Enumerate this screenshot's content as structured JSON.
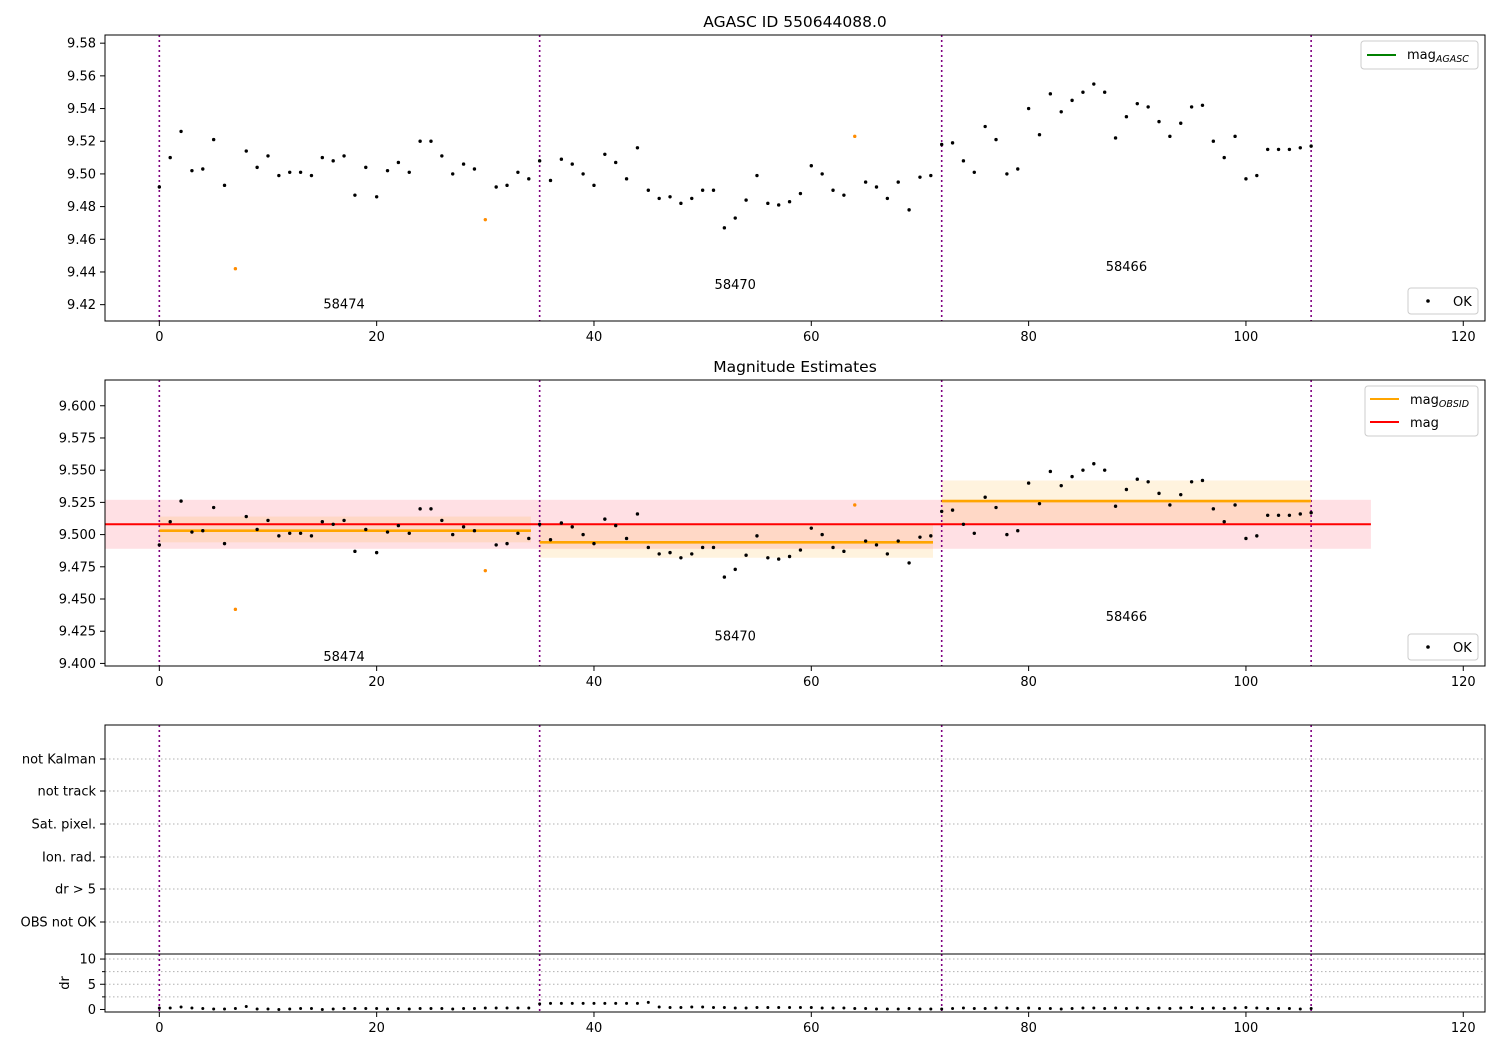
{
  "figure": {
    "top_title": "AGASC ID 550644088.0",
    "middle_title": "Magnitude Estimates"
  },
  "chart_data": [
    {
      "type": "scatter",
      "title": "AGASC ID 550644088.0",
      "xlim": [
        -5,
        122
      ],
      "ylim": [
        9.41,
        9.585
      ],
      "yticks": [
        9.42,
        9.44,
        9.46,
        9.48,
        9.5,
        9.52,
        9.54,
        9.56,
        9.58
      ],
      "xticks": [
        0,
        20,
        40,
        60,
        80,
        100,
        120
      ],
      "obsid_boundaries": [
        0,
        35,
        72,
        106
      ],
      "obsid_labels": [
        {
          "text": "58474",
          "x": 17,
          "y": 9.42
        },
        {
          "text": "58470",
          "x": 53,
          "y": 9.432
        },
        {
          "text": "58466",
          "x": 89,
          "y": 9.443
        }
      ],
      "legend": [
        {
          "name": "mag_AGASC",
          "label_main": "mag",
          "label_sub": "AGASC",
          "style": "line",
          "color": "#008000",
          "position": "top-right"
        },
        {
          "name": "OK",
          "label_main": "OK",
          "style": "point",
          "color": "#000000",
          "position": "bottom-right"
        }
      ],
      "ok_color": "#000000",
      "excluded_color": "#ff8c00",
      "series": [
        {
          "name": "OK",
          "points": [
            [
              0,
              9.492
            ],
            [
              1,
              9.51
            ],
            [
              2,
              9.526
            ],
            [
              3,
              9.502
            ],
            [
              4,
              9.503
            ],
            [
              5,
              9.521
            ],
            [
              6,
              9.493
            ],
            [
              8,
              9.514
            ],
            [
              9,
              9.504
            ],
            [
              10,
              9.511
            ],
            [
              11,
              9.499
            ],
            [
              12,
              9.501
            ],
            [
              13,
              9.501
            ],
            [
              14,
              9.499
            ],
            [
              15,
              9.51
            ],
            [
              16,
              9.508
            ],
            [
              17,
              9.511
            ],
            [
              18,
              9.487
            ],
            [
              19,
              9.504
            ],
            [
              20,
              9.486
            ],
            [
              21,
              9.502
            ],
            [
              22,
              9.507
            ],
            [
              23,
              9.501
            ],
            [
              24,
              9.52
            ],
            [
              25,
              9.52
            ],
            [
              26,
              9.511
            ],
            [
              27,
              9.5
            ],
            [
              28,
              9.506
            ],
            [
              29,
              9.503
            ],
            [
              31,
              9.492
            ],
            [
              32,
              9.493
            ],
            [
              33,
              9.501
            ],
            [
              34,
              9.497
            ],
            [
              35,
              9.508
            ],
            [
              36,
              9.496
            ],
            [
              37,
              9.509
            ],
            [
              38,
              9.506
            ],
            [
              39,
              9.5
            ],
            [
              40,
              9.493
            ],
            [
              41,
              9.512
            ],
            [
              42,
              9.507
            ],
            [
              43,
              9.497
            ],
            [
              44,
              9.516
            ],
            [
              45,
              9.49
            ],
            [
              46,
              9.485
            ],
            [
              47,
              9.486
            ],
            [
              48,
              9.482
            ],
            [
              49,
              9.485
            ],
            [
              50,
              9.49
            ],
            [
              51,
              9.49
            ],
            [
              52,
              9.467
            ],
            [
              53,
              9.473
            ],
            [
              54,
              9.484
            ],
            [
              55,
              9.499
            ],
            [
              56,
              9.482
            ],
            [
              57,
              9.481
            ],
            [
              58,
              9.483
            ],
            [
              59,
              9.488
            ],
            [
              60,
              9.505
            ],
            [
              61,
              9.5
            ],
            [
              62,
              9.49
            ],
            [
              63,
              9.487
            ],
            [
              65,
              9.495
            ],
            [
              66,
              9.492
            ],
            [
              67,
              9.485
            ],
            [
              68,
              9.495
            ],
            [
              69,
              9.478
            ],
            [
              70,
              9.498
            ],
            [
              71,
              9.499
            ],
            [
              72,
              9.518
            ],
            [
              73,
              9.519
            ],
            [
              74,
              9.508
            ],
            [
              75,
              9.501
            ],
            [
              76,
              9.529
            ],
            [
              77,
              9.521
            ],
            [
              78,
              9.5
            ],
            [
              79,
              9.503
            ],
            [
              80,
              9.54
            ],
            [
              81,
              9.524
            ],
            [
              82,
              9.549
            ],
            [
              83,
              9.538
            ],
            [
              84,
              9.545
            ],
            [
              85,
              9.55
            ],
            [
              86,
              9.555
            ],
            [
              87,
              9.55
            ],
            [
              88,
              9.522
            ],
            [
              89,
              9.535
            ],
            [
              90,
              9.543
            ],
            [
              91,
              9.541
            ],
            [
              92,
              9.532
            ],
            [
              93,
              9.523
            ],
            [
              94,
              9.531
            ],
            [
              95,
              9.541
            ],
            [
              96,
              9.542
            ],
            [
              97,
              9.52
            ],
            [
              98,
              9.51
            ],
            [
              99,
              9.523
            ],
            [
              100,
              9.497
            ],
            [
              101,
              9.499
            ],
            [
              102,
              9.515
            ],
            [
              103,
              9.515
            ],
            [
              104,
              9.515
            ],
            [
              105,
              9.516
            ],
            [
              106,
              9.517
            ]
          ]
        },
        {
          "name": "excluded",
          "points": [
            [
              7,
              9.442
            ],
            [
              30,
              9.472
            ],
            [
              64,
              9.523
            ]
          ]
        }
      ]
    },
    {
      "type": "scatter",
      "title": "Magnitude Estimates",
      "xlim": [
        -5,
        122
      ],
      "ylim": [
        9.398,
        9.62
      ],
      "yticks": [
        9.4,
        9.425,
        9.45,
        9.475,
        9.5,
        9.525,
        9.55,
        9.575,
        9.6
      ],
      "ytick_labels": [
        "9.400",
        "9.425",
        "9.450",
        "9.475",
        "9.500",
        "9.525",
        "9.550",
        "9.575",
        "9.600"
      ],
      "xticks": [
        0,
        20,
        40,
        60,
        80,
        100,
        120
      ],
      "obsid_labels": [
        {
          "text": "58474",
          "x": 17,
          "y": 9.405
        },
        {
          "text": "58470",
          "x": 53,
          "y": 9.421
        },
        {
          "text": "58466",
          "x": 89,
          "y": 9.436
        }
      ],
      "mag": {
        "value": 9.508,
        "band": [
          9.489,
          9.527
        ],
        "x_range": [
          -5,
          111.5
        ],
        "color": "#ff0000",
        "band_color": "#ffe0e4"
      },
      "mag_obsid": [
        {
          "x_range": [
            0,
            34.2
          ],
          "value": 9.503,
          "band": [
            9.494,
            9.514
          ]
        },
        {
          "x_range": [
            35,
            71.2
          ],
          "value": 9.494,
          "band": [
            9.482,
            9.508
          ]
        },
        {
          "x_range": [
            72,
            106
          ],
          "value": 9.526,
          "band": [
            9.508,
            9.542
          ]
        }
      ],
      "mag_obsid_color": "#ffa500",
      "legend": [
        {
          "name": "mag_OBSID",
          "label_main": "mag",
          "label_sub": "OBSID",
          "style": "line",
          "color": "#ffa500",
          "position": "top-right"
        },
        {
          "name": "mag",
          "label_main": "mag",
          "style": "line",
          "color": "#ff0000",
          "position": "top-right"
        },
        {
          "name": "OK",
          "label_main": "OK",
          "style": "point",
          "color": "#000000",
          "position": "bottom-right"
        }
      ]
    },
    {
      "type": "scatter",
      "title": "",
      "flag_rows": [
        "not Kalman",
        "not track",
        "Sat. pixel.",
        "Ion. rad.",
        "dr > 5",
        "OBS not OK"
      ],
      "dr_ylabel": "dr",
      "dr_ylim": [
        -0.5,
        11
      ],
      "dr_yticks": [
        0,
        5,
        10
      ],
      "xticks": [
        0,
        20,
        40,
        60,
        80,
        100,
        120
      ],
      "dr": [
        0.3,
        0.3,
        0.5,
        0.3,
        0.2,
        0.1,
        0.1,
        0.2,
        0.6,
        0.1,
        0.1,
        0.0,
        0.1,
        0.2,
        0.2,
        0.0,
        0.1,
        0.2,
        0.2,
        0.2,
        0.2,
        0.1,
        0.2,
        0.1,
        0.2,
        0.2,
        0.2,
        0.1,
        0.2,
        0.2,
        0.3,
        0.3,
        0.3,
        0.3,
        0.3,
        1.1,
        1.2,
        1.2,
        1.2,
        1.2,
        1.2,
        1.2,
        1.2,
        1.2,
        1.2,
        1.4,
        0.5,
        0.4,
        0.4,
        0.5,
        0.5,
        0.4,
        0.4,
        0.3,
        0.3,
        0.4,
        0.4,
        0.4,
        0.4,
        0.4,
        0.4,
        0.3,
        0.3,
        0.3,
        0.2,
        0.2,
        0.1,
        0.1,
        0.1,
        0.2,
        0.1,
        0.1,
        0.1,
        0.2,
        0.3,
        0.2,
        0.2,
        0.3,
        0.3,
        0.2,
        0.3,
        0.2,
        0.2,
        0.1,
        0.2,
        0.3,
        0.3,
        0.2,
        0.3,
        0.2,
        0.3,
        0.2,
        0.3,
        0.2,
        0.3,
        0.4,
        0.2,
        0.3,
        0.2,
        0.3,
        0.4,
        0.3,
        0.2,
        0.2,
        0.2,
        0.1,
        0.2
      ]
    }
  ]
}
